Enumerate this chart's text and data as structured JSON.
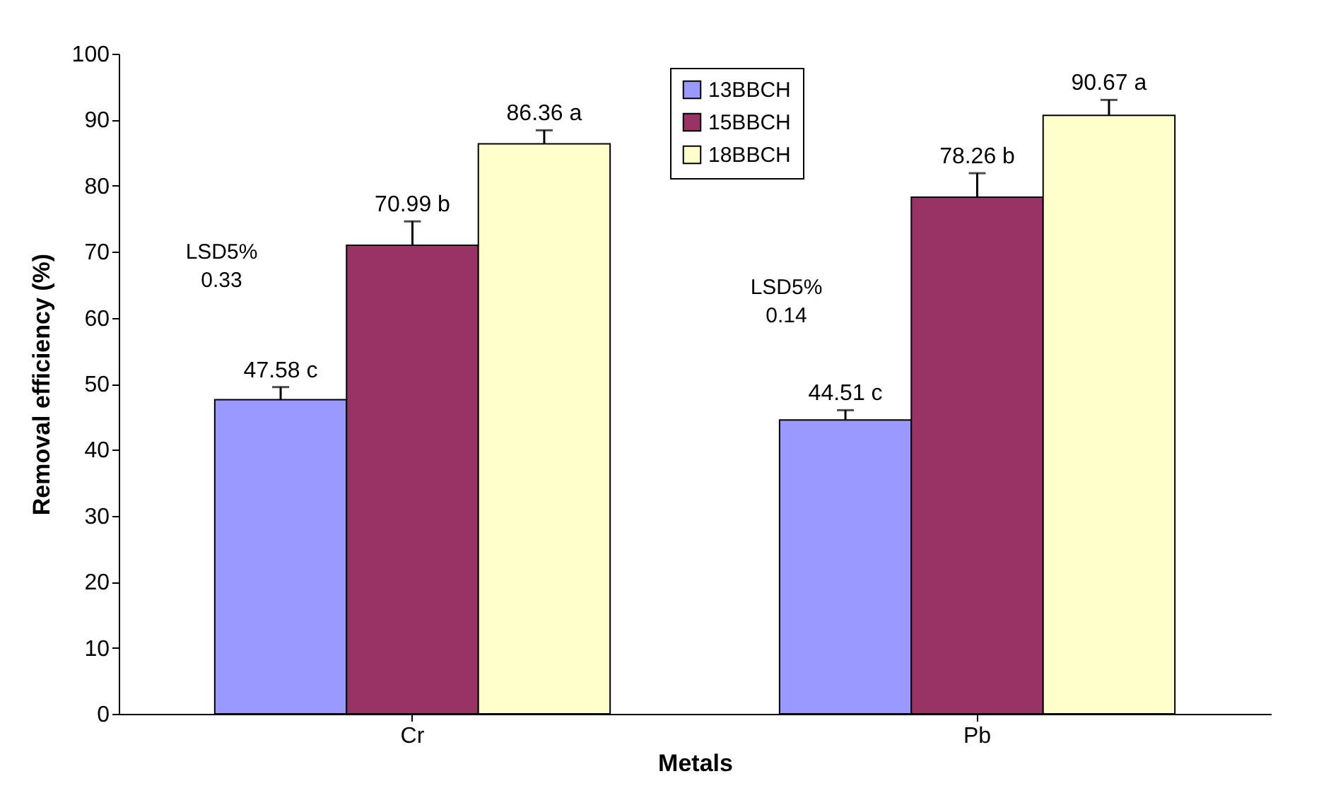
{
  "chart_data": {
    "type": "bar",
    "xlabel": "Metals",
    "ylabel": "Removal efficiency (%)",
    "categories": [
      "Cr",
      "Pb"
    ],
    "series": [
      {
        "name": "13BBCH",
        "color": "#9999ff",
        "values": [
          47.58,
          44.51
        ],
        "errors": [
          [
            47.58,
            49.5
          ],
          [
            44.51,
            46.0
          ]
        ],
        "value_labels": [
          "47.58 c",
          "44.51 c"
        ]
      },
      {
        "name": "15BBCH",
        "color": "#993366",
        "values": [
          70.99,
          78.26
        ],
        "errors": [
          [
            70.99,
            74.6
          ],
          [
            78.26,
            81.9
          ]
        ],
        "value_labels": [
          "70.99 b",
          "78.26 b"
        ]
      },
      {
        "name": "18BBCH",
        "color": "#ffffcc",
        "values": [
          86.36,
          90.67
        ],
        "errors": [
          [
            86.36,
            88.4
          ],
          [
            90.67,
            93.0
          ]
        ],
        "value_labels": [
          "86.36 a",
          "90.67 a"
        ]
      }
    ],
    "ylim": [
      0,
      100
    ],
    "yticks": [
      0,
      10,
      20,
      30,
      40,
      50,
      60,
      70,
      80,
      90,
      100
    ],
    "annotations": [
      "LSD5%\n0.33",
      "LSD5%\n0.14"
    ],
    "legend": "top",
    "grid": false
  }
}
